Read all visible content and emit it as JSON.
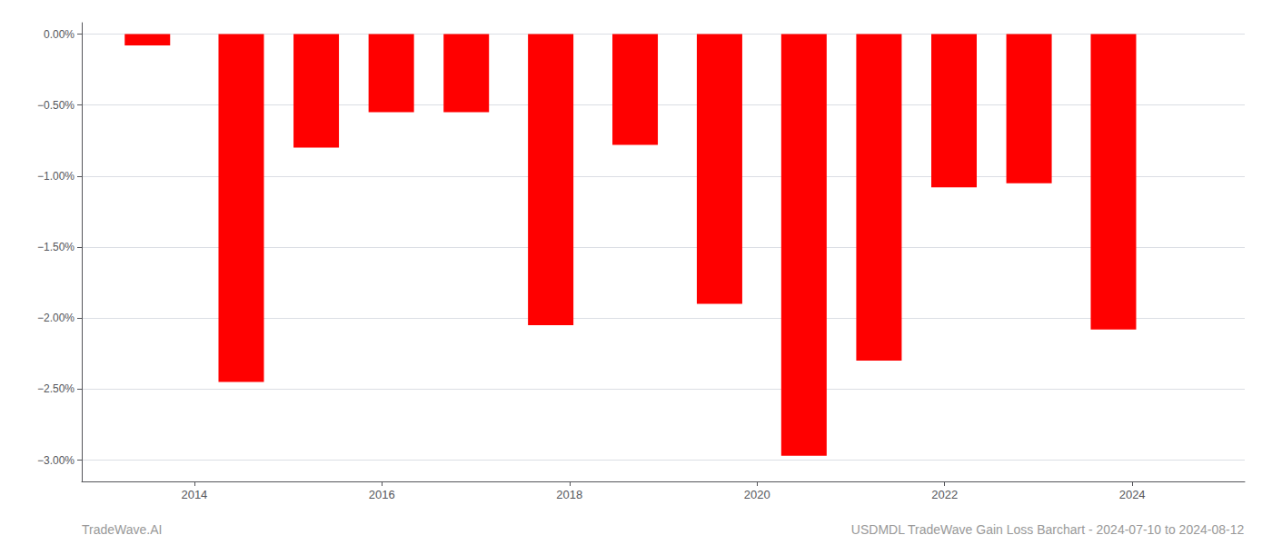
{
  "chart_data": {
    "type": "bar",
    "x": [
      2013.5,
      2014.5,
      2015.3,
      2016.1,
      2016.9,
      2017.8,
      2018.7,
      2019.6,
      2020.5,
      2021.3,
      2022.1,
      2022.9,
      2023.8
    ],
    "values": [
      -0.08,
      -2.45,
      -0.8,
      -0.55,
      -0.55,
      -2.05,
      -0.78,
      -1.9,
      -2.97,
      -2.3,
      -1.08,
      -1.05,
      -2.08
    ],
    "color": "#ff0000",
    "xlim": [
      2012.8,
      2025.2
    ],
    "xticks": [
      2014,
      2016,
      2018,
      2020,
      2022,
      2024
    ],
    "ylim": [
      -3.15,
      0.08
    ],
    "yticks": [
      {
        "value": 0.0,
        "label": "0.00%"
      },
      {
        "value": -0.5,
        "label": "−0.50%"
      },
      {
        "value": -1.0,
        "label": "−1.00%"
      },
      {
        "value": -1.5,
        "label": "−1.50%"
      },
      {
        "value": -2.0,
        "label": "−2.00%"
      },
      {
        "value": -2.5,
        "label": "−2.50%"
      },
      {
        "value": -3.0,
        "label": "−3.00%"
      }
    ],
    "grid": true,
    "annotations": [
      "TradeWave.AI",
      "USDMDL TradeWave Gain Loss Barchart - 2024-07-10 to 2024-08-12"
    ]
  }
}
